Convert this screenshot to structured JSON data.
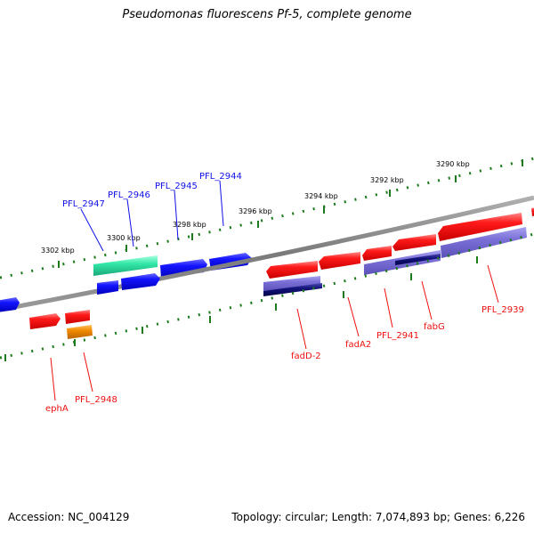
{
  "title": "Pseudomonas fluorescens Pf-5, complete genome",
  "footer": {
    "accession": "Accession: NC_004129",
    "summary": "Topology: circular; Length: 7,074,893 bp; Genes: 6,226"
  },
  "scale_labels": [
    "3290 kbp",
    "3292 kbp",
    "3294 kbp",
    "3296 kbp",
    "3298 kbp",
    "3300 kbp",
    "3302 kbp"
  ],
  "genes_forward": [
    "PFL_2947",
    "PFL_2946",
    "PFL_2945",
    "PFL_2944"
  ],
  "genes_reverse": [
    "ephA",
    "PFL_2948",
    "fadD-2",
    "fadA2",
    "PFL_2941",
    "fabG",
    "PFL_2939"
  ],
  "colors": {
    "forward_gene": "#1010e8",
    "reverse_gene": "#ee1111",
    "cds_lavender": "#7a6fd6",
    "cds_dark": "#12127a",
    "rna_teal": "#33e8a8",
    "misc_orange": "#f08a00",
    "backbone": "#8a8a8a",
    "tick": "#1f7a1f"
  }
}
